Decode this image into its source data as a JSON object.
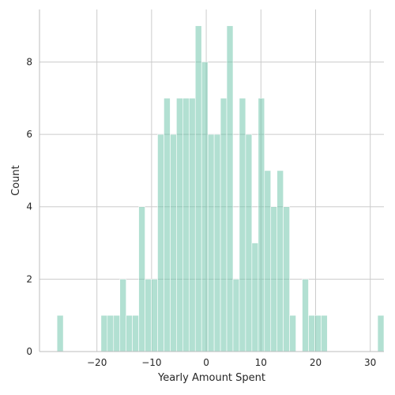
{
  "chart_data": {
    "type": "bar",
    "title": "",
    "xlabel": "Yearly Amount Spent",
    "ylabel": "Count",
    "bin_width": 1.15,
    "first_bin_start": -27.3,
    "counts": [
      1,
      0,
      0,
      0,
      0,
      0,
      0,
      1,
      1,
      1,
      2,
      1,
      1,
      4,
      2,
      2,
      6,
      7,
      6,
      7,
      7,
      7,
      9,
      8,
      6,
      6,
      7,
      9,
      2,
      7,
      6,
      3,
      7,
      5,
      4,
      5,
      4,
      1,
      0,
      2,
      1,
      1,
      1,
      0,
      0,
      0,
      0,
      0,
      0,
      0,
      0,
      1
    ],
    "xlim": [
      -30.5,
      32.5
    ],
    "ylim": [
      0,
      9.45
    ],
    "xticks": [
      -20,
      -10,
      0,
      10,
      20,
      30
    ],
    "xtick_labels": [
      "−20",
      "−10",
      "0",
      "10",
      "20",
      "30"
    ],
    "yticks": [
      0,
      2,
      4,
      6,
      8
    ],
    "ytick_labels": [
      "0",
      "2",
      "4",
      "6",
      "8"
    ],
    "grid": true,
    "bar_color": "#66c2a5",
    "bar_opacity": 0.5
  }
}
